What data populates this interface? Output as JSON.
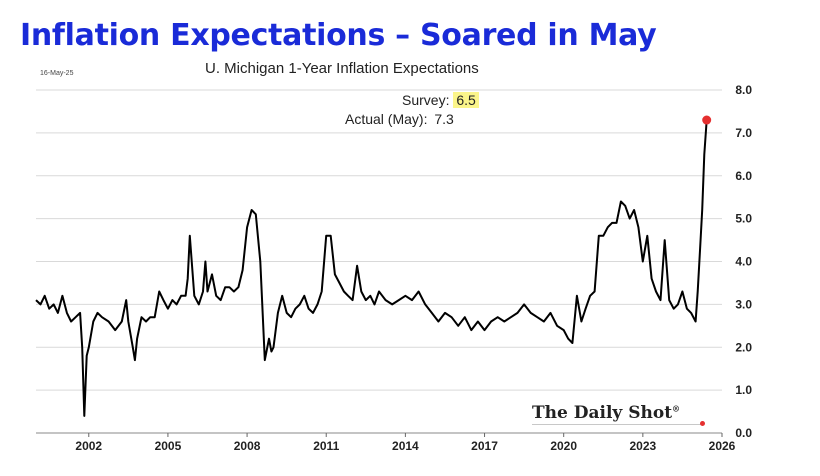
{
  "headline": "Inflation Expectations – Soared in May",
  "date_stamp": "16-May-25",
  "source": "The Daily Shot",
  "source_mark": "®",
  "colors": {
    "headline": "#1a2bd8",
    "line": "#000000",
    "marker": "#e53030",
    "highlight": "#fbf58a",
    "grid": "#d9d9d9"
  },
  "annotation": {
    "survey_label": "Survey:",
    "survey_value": "6.5",
    "actual_label": "Actual (May):",
    "actual_value": "7.3"
  },
  "chart_data": {
    "type": "line",
    "title": "U. Michigan 1-Year Inflation Expectations",
    "xlabel": "",
    "ylabel": "",
    "xlim": [
      2000,
      2026
    ],
    "ylim": [
      0,
      8
    ],
    "x_ticks": [
      "2002",
      "2005",
      "2008",
      "2011",
      "2014",
      "2017",
      "2020",
      "2023",
      "2026"
    ],
    "y_ticks": [
      "0.0",
      "1.0",
      "2.0",
      "3.0",
      "4.0",
      "5.0",
      "6.0",
      "7.0",
      "8.0"
    ],
    "y_axis_position": "right",
    "grid": "horizontal",
    "series": [
      {
        "x": [
          2000.0,
          2000.17,
          2000.33,
          2000.5,
          2000.67,
          2000.83,
          2001.0,
          2001.17,
          2001.33,
          2001.5,
          2001.67,
          2001.75,
          2001.83,
          2001.92,
          2002.0,
          2002.17,
          2002.33,
          2002.5,
          2002.75,
          2003.0,
          2003.25,
          2003.42,
          2003.5,
          2003.67,
          2003.75,
          2003.83,
          2004.0,
          2004.17,
          2004.33,
          2004.5,
          2004.67,
          2004.83,
          2005.0,
          2005.17,
          2005.33,
          2005.5,
          2005.67,
          2005.75,
          2005.83,
          2006.0,
          2006.17,
          2006.33,
          2006.42,
          2006.5,
          2006.67,
          2006.83,
          2007.0,
          2007.17,
          2007.33,
          2007.5,
          2007.67,
          2007.83,
          2008.0,
          2008.17,
          2008.33,
          2008.5,
          2008.67,
          2008.83,
          2008.92,
          2009.0,
          2009.17,
          2009.33,
          2009.5,
          2009.67,
          2009.83,
          2010.0,
          2010.17,
          2010.33,
          2010.5,
          2010.67,
          2010.83,
          2011.0,
          2011.17,
          2011.33,
          2011.5,
          2011.67,
          2011.83,
          2012.0,
          2012.17,
          2012.33,
          2012.5,
          2012.67,
          2012.83,
          2013.0,
          2013.25,
          2013.5,
          2013.75,
          2014.0,
          2014.25,
          2014.5,
          2014.75,
          2015.0,
          2015.25,
          2015.5,
          2015.75,
          2016.0,
          2016.25,
          2016.5,
          2016.75,
          2017.0,
          2017.25,
          2017.5,
          2017.75,
          2018.0,
          2018.25,
          2018.5,
          2018.75,
          2019.0,
          2019.25,
          2019.5,
          2019.75,
          2020.0,
          2020.17,
          2020.33,
          2020.5,
          2020.67,
          2020.83,
          2021.0,
          2021.17,
          2021.33,
          2021.5,
          2021.67,
          2021.83,
          2022.0,
          2022.17,
          2022.33,
          2022.5,
          2022.67,
          2022.83,
          2023.0,
          2023.17,
          2023.33,
          2023.5,
          2023.67,
          2023.83,
          2024.0,
          2024.17,
          2024.33,
          2024.5,
          2024.67,
          2024.83,
          2025.0,
          2025.08,
          2025.17,
          2025.25,
          2025.33,
          2025.42
        ],
        "y": [
          3.1,
          3.0,
          3.2,
          2.9,
          3.0,
          2.8,
          3.2,
          2.8,
          2.6,
          2.7,
          2.8,
          2.0,
          0.4,
          1.8,
          2.0,
          2.6,
          2.8,
          2.7,
          2.6,
          2.4,
          2.6,
          3.1,
          2.6,
          2.0,
          1.7,
          2.2,
          2.7,
          2.6,
          2.7,
          2.7,
          3.3,
          3.1,
          2.9,
          3.1,
          3.0,
          3.2,
          3.2,
          3.6,
          4.6,
          3.2,
          3.0,
          3.3,
          4.0,
          3.3,
          3.7,
          3.2,
          3.1,
          3.4,
          3.4,
          3.3,
          3.4,
          3.8,
          4.8,
          5.2,
          5.1,
          4.0,
          1.7,
          2.2,
          1.9,
          2.0,
          2.8,
          3.2,
          2.8,
          2.7,
          2.9,
          3.0,
          3.2,
          2.9,
          2.8,
          3.0,
          3.3,
          4.6,
          4.6,
          3.7,
          3.5,
          3.3,
          3.2,
          3.1,
          3.9,
          3.3,
          3.1,
          3.2,
          3.0,
          3.3,
          3.1,
          3.0,
          3.1,
          3.2,
          3.1,
          3.3,
          3.0,
          2.8,
          2.6,
          2.8,
          2.7,
          2.5,
          2.7,
          2.4,
          2.6,
          2.4,
          2.6,
          2.7,
          2.6,
          2.7,
          2.8,
          3.0,
          2.8,
          2.7,
          2.6,
          2.8,
          2.5,
          2.4,
          2.2,
          2.1,
          3.2,
          2.6,
          2.9,
          3.2,
          3.3,
          4.6,
          4.6,
          4.8,
          4.9,
          4.9,
          5.4,
          5.3,
          5.0,
          5.2,
          4.8,
          4.0,
          4.6,
          3.6,
          3.3,
          3.1,
          4.5,
          3.1,
          2.9,
          3.0,
          3.3,
          2.9,
          2.8,
          2.6,
          3.3,
          4.3,
          5.2,
          6.5,
          7.3
        ]
      }
    ],
    "highlight_point": {
      "x": 2025.42,
      "y": 7.3
    }
  }
}
